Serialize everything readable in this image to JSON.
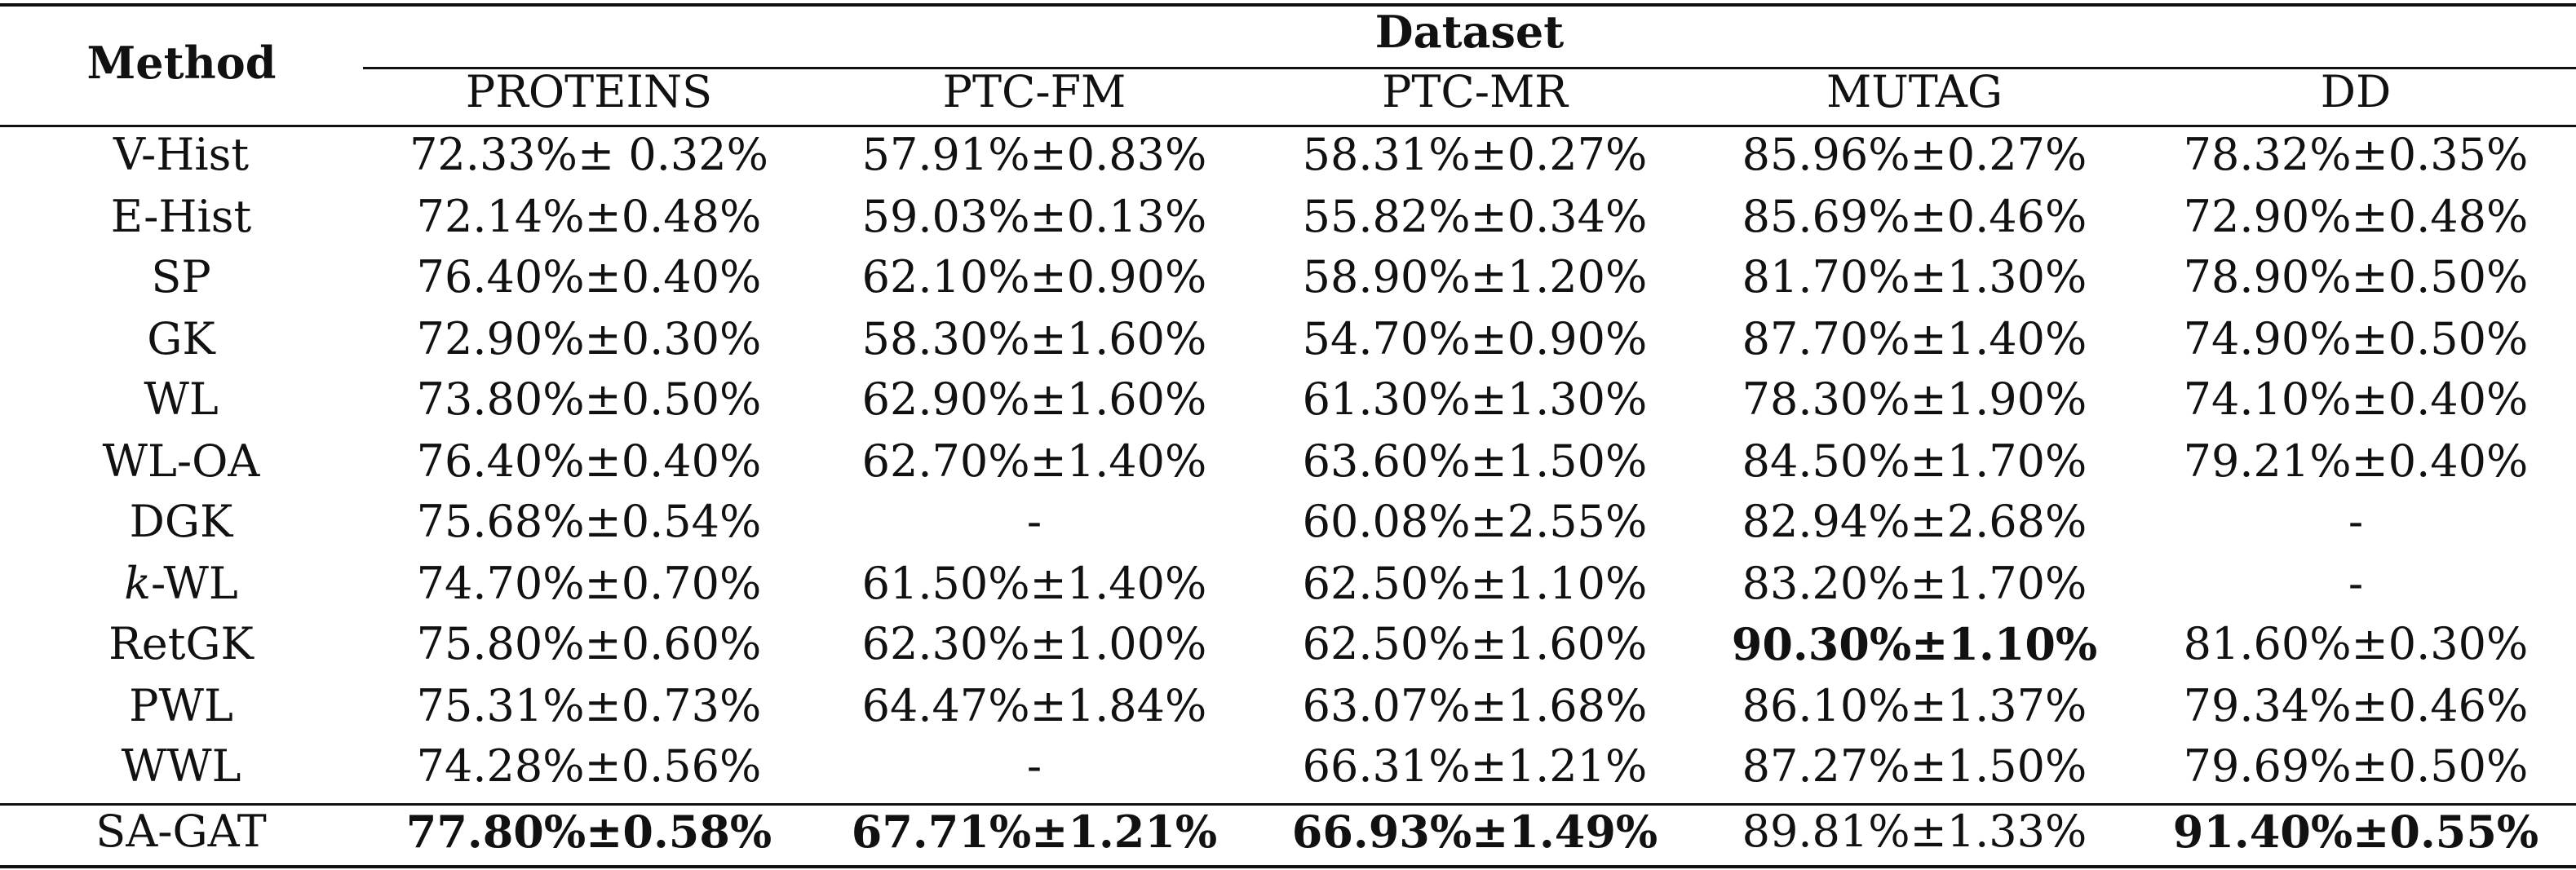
{
  "table": {
    "method_header": "Method",
    "dataset_header": "Dataset",
    "columns": [
      "PROTEINS",
      "PTC-FM",
      "PTC-MR",
      "MUTAG",
      "DD"
    ],
    "rows": [
      {
        "method_italic": "",
        "method": "V-Hist",
        "values": [
          "72.33%± 0.32%",
          "57.91%±0.83%",
          "58.31%±0.27%",
          "85.96%±0.27%",
          "78.32%±0.35%"
        ],
        "bold": [
          false,
          false,
          false,
          false,
          false
        ]
      },
      {
        "method_italic": "",
        "method": "E-Hist",
        "values": [
          "72.14%±0.48%",
          "59.03%±0.13%",
          "55.82%±0.34%",
          "85.69%±0.46%",
          "72.90%±0.48%"
        ],
        "bold": [
          false,
          false,
          false,
          false,
          false
        ]
      },
      {
        "method_italic": "",
        "method": "SP",
        "values": [
          "76.40%±0.40%",
          "62.10%±0.90%",
          "58.90%±1.20%",
          "81.70%±1.30%",
          "78.90%±0.50%"
        ],
        "bold": [
          false,
          false,
          false,
          false,
          false
        ]
      },
      {
        "method_italic": "",
        "method": "GK",
        "values": [
          "72.90%±0.30%",
          "58.30%±1.60%",
          "54.70%±0.90%",
          "87.70%±1.40%",
          "74.90%±0.50%"
        ],
        "bold": [
          false,
          false,
          false,
          false,
          false
        ]
      },
      {
        "method_italic": "",
        "method": "WL",
        "values": [
          "73.80%±0.50%",
          "62.90%±1.60%",
          "61.30%±1.30%",
          "78.30%±1.90%",
          "74.10%±0.40%"
        ],
        "bold": [
          false,
          false,
          false,
          false,
          false
        ]
      },
      {
        "method_italic": "",
        "method": "WL-OA",
        "values": [
          "76.40%±0.40%",
          "62.70%±1.40%",
          "63.60%±1.50%",
          "84.50%±1.70%",
          "79.21%±0.40%"
        ],
        "bold": [
          false,
          false,
          false,
          false,
          false
        ]
      },
      {
        "method_italic": "",
        "method": "DGK",
        "values": [
          "75.68%±0.54%",
          "-",
          "60.08%±2.55%",
          "82.94%±2.68%",
          "-"
        ],
        "bold": [
          false,
          false,
          false,
          false,
          false
        ]
      },
      {
        "method_italic": "k",
        "method": "-WL",
        "values": [
          "74.70%±0.70%",
          "61.50%±1.40%",
          "62.50%±1.10%",
          "83.20%±1.70%",
          "-"
        ],
        "bold": [
          false,
          false,
          false,
          false,
          false
        ]
      },
      {
        "method_italic": "",
        "method": "RetGK",
        "values": [
          "75.80%±0.60%",
          "62.30%±1.00%",
          "62.50%±1.60%",
          "90.30%±1.10%",
          "81.60%±0.30%"
        ],
        "bold": [
          false,
          false,
          false,
          true,
          false
        ]
      },
      {
        "method_italic": "",
        "method": "PWL",
        "values": [
          "75.31%±0.73%",
          "64.47%±1.84%",
          "63.07%±1.68%",
          "86.10%±1.37%",
          "79.34%±0.46%"
        ],
        "bold": [
          false,
          false,
          false,
          false,
          false
        ]
      },
      {
        "method_italic": "",
        "method": "WWL",
        "values": [
          "74.28%±0.56%",
          "-",
          "66.31%±1.21%",
          "87.27%±1.50%",
          "79.69%±0.50%"
        ],
        "bold": [
          false,
          false,
          false,
          false,
          false
        ]
      },
      {
        "method_italic": "",
        "method": "SA-GAT",
        "values": [
          "77.80%±0.58%",
          "67.71%±1.21%",
          "66.93%±1.49%",
          "89.81%±1.33%",
          "91.40%±0.55%"
        ],
        "bold": [
          true,
          true,
          true,
          false,
          true
        ]
      }
    ]
  }
}
